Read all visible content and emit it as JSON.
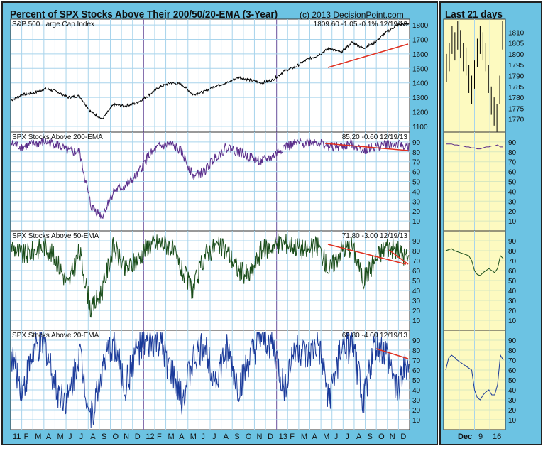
{
  "header": {
    "title": "Percent of SPX Stocks Above Their 200/50/20-EMA (3-Year)",
    "copyright": "(c) 2013 DecisionPoint.com",
    "side_title": "Last 21 days"
  },
  "chart_data": [
    {
      "type": "line",
      "title": "S&P 500 Large Cap Index",
      "readout": "1809.60  -1.05  -0.1%  12/19/13",
      "yticks": [
        1100,
        1200,
        1300,
        1400,
        1500,
        1600,
        1700,
        1800
      ],
      "ylim": [
        1060,
        1840
      ],
      "color": "#000000",
      "values": [
        1280,
        1320,
        1330,
        1360,
        1340,
        1300,
        1310,
        1200,
        1150,
        1250,
        1240,
        1260,
        1310,
        1370,
        1400,
        1390,
        1320,
        1340,
        1380,
        1400,
        1440,
        1420,
        1400,
        1420,
        1480,
        1510,
        1560,
        1590,
        1640,
        1610,
        1680,
        1640,
        1680,
        1750,
        1800,
        1810
      ]
    },
    {
      "type": "line",
      "title": "SPX Stocks Above 200-EMA",
      "readout": "85.20  -0.60  12/19/13",
      "yticks": [
        10,
        20,
        30,
        40,
        50,
        60,
        70,
        80,
        90
      ],
      "ylim": [
        0,
        100
      ],
      "color": "#5a2d8a",
      "values": [
        88,
        85,
        88,
        90,
        88,
        80,
        80,
        25,
        15,
        40,
        45,
        55,
        75,
        85,
        88,
        80,
        55,
        60,
        75,
        85,
        80,
        75,
        70,
        75,
        85,
        88,
        90,
        90,
        85,
        85,
        88,
        82,
        85,
        88,
        87,
        85
      ]
    },
    {
      "type": "line",
      "title": "SPX Stocks Above 50-EMA",
      "readout": "71.80  -3.00  12/19/13",
      "yticks": [
        10,
        20,
        30,
        40,
        50,
        60,
        70,
        80,
        90
      ],
      "ylim": [
        0,
        100
      ],
      "color": "#1a4d1a",
      "values": [
        85,
        75,
        80,
        85,
        70,
        45,
        80,
        20,
        40,
        85,
        60,
        70,
        85,
        88,
        85,
        60,
        40,
        75,
        85,
        80,
        60,
        55,
        80,
        85,
        88,
        85,
        80,
        85,
        60,
        80,
        85,
        50,
        70,
        85,
        80,
        72
      ]
    },
    {
      "type": "line",
      "title": "SPX Stocks Above 20-EMA",
      "readout": "69.80  -4.00  12/19/13",
      "yticks": [
        10,
        20,
        30,
        40,
        50,
        60,
        70,
        80,
        90
      ],
      "ylim": [
        0,
        100
      ],
      "color": "#1a3a9a",
      "values": [
        75,
        40,
        80,
        85,
        40,
        30,
        80,
        10,
        60,
        90,
        40,
        80,
        85,
        88,
        60,
        30,
        70,
        85,
        50,
        80,
        40,
        70,
        90,
        85,
        40,
        85,
        70,
        85,
        30,
        80,
        85,
        30,
        85,
        75,
        40,
        70
      ]
    }
  ],
  "xticks": [
    "11",
    "F",
    "M",
    "A",
    "M",
    "J",
    "J",
    "A",
    "S",
    "O",
    "N",
    "D",
    "12",
    "F",
    "M",
    "A",
    "M",
    "J",
    "J",
    "A",
    "S",
    "O",
    "N",
    "D",
    "13",
    "F",
    "M",
    "A",
    "M",
    "J",
    "J",
    "A",
    "S",
    "O",
    "N",
    "D"
  ],
  "side": {
    "xticks": [
      "Dec",
      "9",
      "16"
    ],
    "spx_yticks": [
      1770,
      1775,
      1780,
      1785,
      1790,
      1795,
      1800,
      1805,
      1810
    ],
    "spx_ylim": [
      1764,
      1816
    ],
    "spx": [
      1795,
      1800,
      1808,
      1805,
      1810,
      1806,
      1800,
      1798,
      1790,
      1785,
      1792,
      1802,
      1808,
      1805,
      1800,
      1790,
      1780,
      1775,
      1772,
      1785,
      1810
    ],
    "ema200": [
      88,
      88,
      88,
      87,
      87,
      86,
      86,
      85,
      85,
      84,
      84,
      83,
      83,
      84,
      85,
      85,
      86,
      86,
      87,
      85,
      85
    ],
    "ema50": [
      80,
      81,
      82,
      80,
      79,
      78,
      77,
      76,
      75,
      70,
      60,
      56,
      55,
      58,
      60,
      62,
      60,
      58,
      62,
      75,
      72
    ],
    "ema20": [
      60,
      72,
      75,
      73,
      70,
      68,
      66,
      64,
      62,
      60,
      40,
      32,
      30,
      35,
      38,
      40,
      35,
      35,
      45,
      75,
      70
    ]
  }
}
